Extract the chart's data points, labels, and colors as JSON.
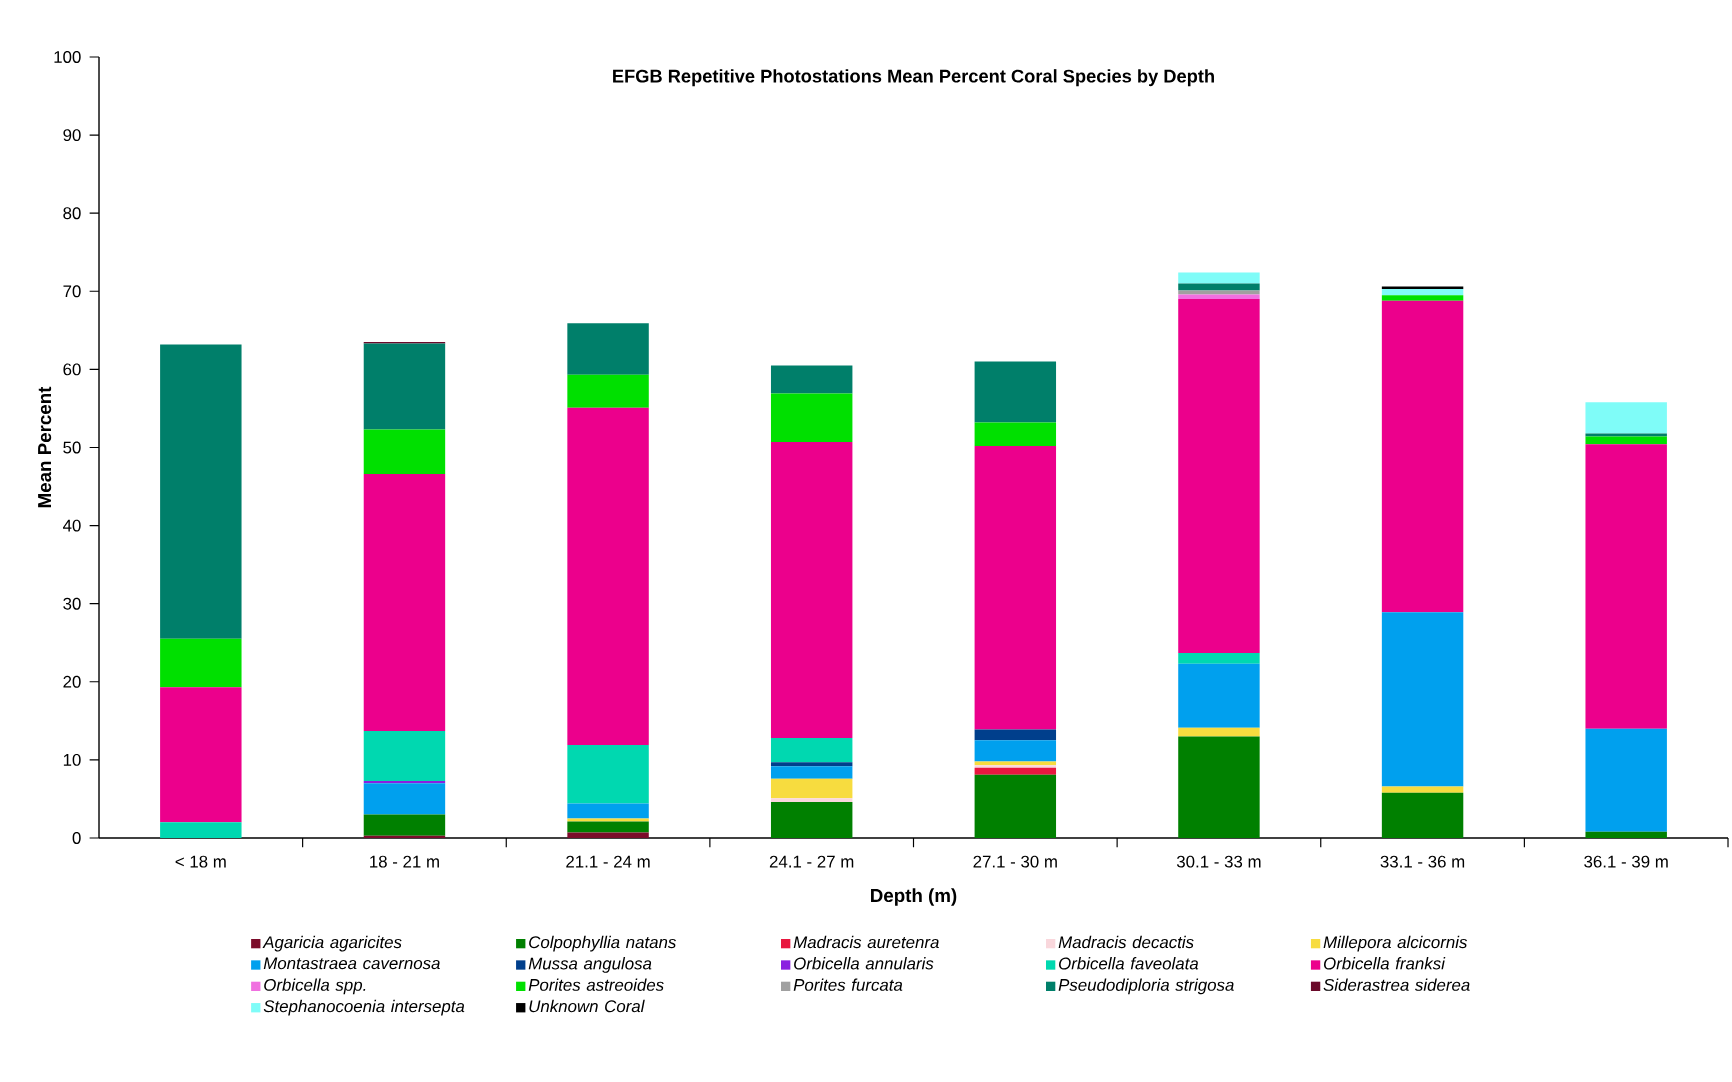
{
  "chart_data": {
    "type": "bar",
    "stacked": true,
    "title": "EFGB Repetitive Photostations Mean Percent Coral Species by Depth",
    "xlabel": "Depth (m)",
    "ylabel": "Mean Percent",
    "categories": [
      "< 18 m",
      "18 - 21 m",
      "21.1 - 24 m",
      "24.1 - 27 m",
      "27.1 - 30 m",
      "30.1 - 33 m",
      "33.1 - 36 m",
      "36.1 - 39 m"
    ],
    "ylim": [
      0,
      100
    ],
    "yticks": [
      0,
      10,
      20,
      30,
      40,
      50,
      60,
      70,
      80,
      90,
      100
    ],
    "grid": false,
    "legend": "bottom",
    "series": [
      {
        "name": "Agaricia agaricites",
        "color": "#7b0c2a",
        "values": [
          null,
          0.3,
          0.7,
          null,
          null,
          null,
          null,
          null
        ]
      },
      {
        "name": "Colpophyllia natans",
        "color": "#008000",
        "values": [
          null,
          2.7,
          1.4,
          4.6,
          8.1,
          13.0,
          5.8,
          0.8
        ]
      },
      {
        "name": "Madracis auretenra",
        "color": "#e8173f",
        "values": [
          null,
          null,
          null,
          null,
          0.9,
          null,
          null,
          null
        ]
      },
      {
        "name": "Madracis decactis",
        "color": "#f9d7dc",
        "values": [
          null,
          null,
          null,
          0.5,
          0.3,
          null,
          null,
          null
        ]
      },
      {
        "name": "Millepora alcicornis",
        "color": "#f7dc3f",
        "values": [
          null,
          null,
          0.4,
          2.5,
          0.5,
          1.1,
          0.8,
          null
        ]
      },
      {
        "name": "Montastraea cavernosa",
        "color": "#00a0ee",
        "values": [
          null,
          4.0,
          1.9,
          1.6,
          2.7,
          8.2,
          22.3,
          13.2
        ]
      },
      {
        "name": "Mussa angulosa",
        "color": "#003f8c",
        "values": [
          null,
          null,
          null,
          0.5,
          1.4,
          null,
          null,
          null
        ]
      },
      {
        "name": "Orbicella annularis",
        "color": "#8b1fe0",
        "values": [
          null,
          0.3,
          null,
          null,
          null,
          null,
          null,
          null
        ]
      },
      {
        "name": "Orbicella faveolata",
        "color": "#00d8b0",
        "values": [
          2.0,
          6.4,
          7.5,
          3.1,
          null,
          1.4,
          null,
          null
        ]
      },
      {
        "name": "Orbicella franksi",
        "color": "#ec008c",
        "values": [
          17.3,
          32.9,
          43.2,
          37.9,
          36.3,
          45.3,
          39.9,
          36.4
        ]
      },
      {
        "name": "Orbicella spp.",
        "color": "#f070e0",
        "values": [
          null,
          null,
          null,
          null,
          null,
          0.6,
          null,
          null
        ]
      },
      {
        "name": "Porites astreoides",
        "color": "#00e000",
        "values": [
          6.2,
          5.7,
          4.2,
          6.2,
          3.0,
          null,
          0.7,
          1.0
        ]
      },
      {
        "name": "Porites furcata",
        "color": "#a0a0a0",
        "values": [
          null,
          null,
          null,
          null,
          null,
          0.5,
          null,
          null
        ]
      },
      {
        "name": "Pseudodiploria strigosa",
        "color": "#007f6a",
        "values": [
          37.7,
          11.0,
          6.6,
          3.6,
          7.8,
          0.9,
          null,
          0.4
        ]
      },
      {
        "name": "Siderastrea siderea",
        "color": "#6a0a2a",
        "values": [
          null,
          0.2,
          null,
          null,
          null,
          null,
          null,
          null
        ]
      },
      {
        "name": "Stephanocoenia intersepta",
        "color": "#7ffcf8",
        "values": [
          null,
          null,
          null,
          null,
          null,
          1.4,
          0.8,
          4.0
        ]
      },
      {
        "name": "Unknown Coral",
        "color": "#000000",
        "values": [
          null,
          null,
          null,
          null,
          null,
          null,
          0.3,
          null
        ]
      }
    ]
  }
}
